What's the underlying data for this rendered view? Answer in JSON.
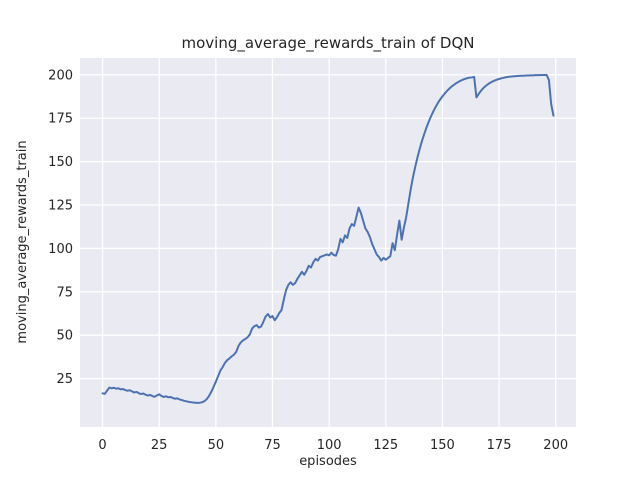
{
  "chart_data": {
    "type": "line",
    "title": "moving_average_rewards_train of DQN",
    "xlabel": "episodes",
    "ylabel": "moving_average_rewards_train",
    "style": "seaborn-darkgrid",
    "grid": true,
    "legend": false,
    "colors": {
      "line": "#4c72b0",
      "plot_background": "#eaeaf2",
      "grid": "#ffffff",
      "text": "#262626",
      "figure_background": "#ffffff"
    },
    "xlim": [
      -9.95,
      208.95
    ],
    "ylim": [
      -2.9,
      209.7
    ],
    "xticks": [
      0,
      25,
      50,
      75,
      100,
      125,
      150,
      175,
      200
    ],
    "yticks": [
      25,
      50,
      75,
      100,
      125,
      150,
      175,
      200
    ],
    "series": [
      {
        "name": "moving_average_rewards_train",
        "x_start": 0,
        "x_step": 1,
        "values": [
          16.5,
          16.2,
          18.0,
          19.8,
          19.4,
          19.7,
          19.2,
          19.4,
          18.8,
          19.0,
          18.4,
          18.0,
          18.3,
          17.6,
          17.0,
          17.3,
          16.6,
          16.1,
          16.4,
          15.7,
          15.2,
          15.6,
          14.9,
          14.5,
          15.3,
          15.9,
          15.0,
          14.4,
          14.8,
          14.2,
          14.4,
          13.8,
          13.4,
          13.6,
          13.0,
          12.6,
          12.2,
          11.9,
          11.6,
          11.4,
          11.2,
          11.1,
          11.0,
          11.1,
          11.4,
          12.0,
          13.2,
          15.0,
          17.4,
          20.2,
          23.2,
          26.4,
          29.6,
          31.6,
          34.0,
          35.6,
          36.6,
          37.8,
          38.8,
          40.4,
          43.8,
          45.8,
          47.0,
          47.8,
          48.8,
          50.4,
          53.8,
          55.2,
          55.8,
          54.4,
          55.0,
          57.8,
          60.8,
          62.2,
          60.2,
          61.0,
          58.6,
          60.4,
          62.8,
          64.5,
          70.5,
          76.0,
          79.0,
          80.5,
          79.0,
          80.0,
          82.5,
          84.5,
          86.5,
          84.8,
          87.0,
          90.0,
          89.0,
          92.0,
          94.0,
          93.0,
          95.0,
          95.5,
          96.0,
          96.5,
          96.0,
          97.5,
          96.2,
          95.8,
          99.5,
          105.5,
          103.5,
          107.5,
          106.0,
          111.5,
          114.0,
          113.0,
          118.0,
          123.5,
          120.5,
          116.0,
          111.5,
          109.5,
          106.5,
          102.5,
          99.5,
          96.5,
          95.0,
          93.0,
          94.5,
          93.5,
          94.5,
          95.5,
          103.0,
          99.0,
          108.0,
          116.0,
          105.0,
          112.0,
          118.0,
          126.0,
          134.0,
          141.0,
          147.0,
          152.5,
          157.5,
          162.0,
          166.0,
          169.8,
          173.2,
          176.2,
          179.0,
          181.5,
          183.8,
          185.8,
          187.6,
          189.2,
          190.7,
          192.0,
          193.2,
          194.2,
          195.1,
          195.9,
          196.6,
          197.2,
          197.7,
          198.1,
          198.4,
          198.5,
          198.8,
          187.0,
          189.0,
          190.8,
          192.3,
          193.5,
          194.5,
          195.4,
          196.1,
          196.7,
          197.2,
          197.6,
          198.0,
          198.3,
          198.6,
          198.8,
          199.0,
          199.1,
          199.2,
          199.3,
          199.4,
          199.5,
          199.5,
          199.6,
          199.6,
          199.7,
          199.7,
          199.8,
          199.8,
          199.8,
          199.9,
          199.9,
          199.9,
          197.0,
          183.0,
          176.5
        ]
      }
    ]
  }
}
